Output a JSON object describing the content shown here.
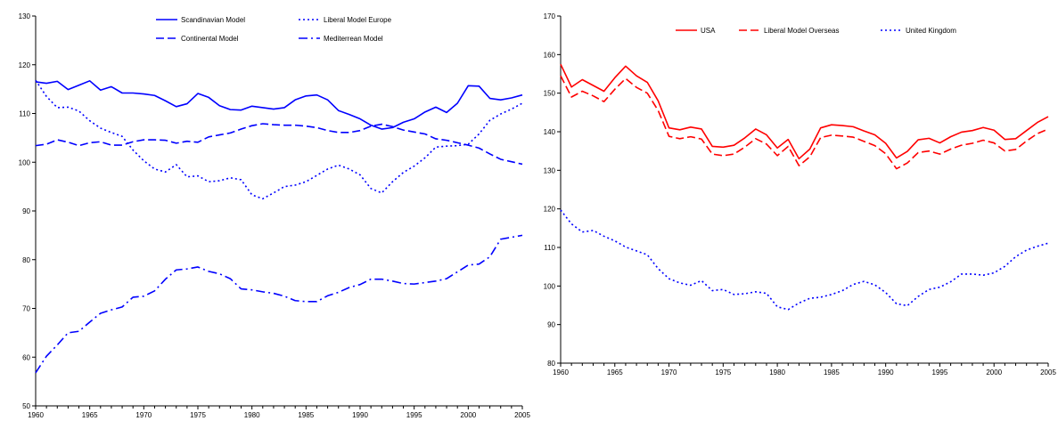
{
  "chart_data": [
    {
      "type": "line",
      "x": [
        1960,
        1961,
        1962,
        1963,
        1964,
        1965,
        1966,
        1967,
        1968,
        1969,
        1970,
        1971,
        1972,
        1973,
        1974,
        1975,
        1976,
        1977,
        1978,
        1979,
        1980,
        1981,
        1982,
        1983,
        1984,
        1985,
        1986,
        1987,
        1988,
        1989,
        1990,
        1991,
        1992,
        1993,
        1994,
        1995,
        1996,
        1997,
        1998,
        1999,
        2000,
        2001,
        2002,
        2003,
        2004,
        2005
      ],
      "xticks": [
        1960,
        1965,
        1970,
        1975,
        1980,
        1985,
        1990,
        1995,
        2000,
        2005
      ],
      "xlim": [
        1960,
        2005
      ],
      "ylim": [
        50,
        130
      ],
      "yticks": [
        50,
        60,
        70,
        80,
        90,
        100,
        110,
        120,
        130
      ],
      "grid": false,
      "legend_position": "top-center",
      "series": [
        {
          "name": "Scandinavian Model",
          "color": "#0000ff",
          "style": "solid",
          "values": [
            116.5,
            116.2,
            116.6,
            114.9,
            115.8,
            116.7,
            114.8,
            115.5,
            114.2,
            114.2,
            114.0,
            113.7,
            112.6,
            111.4,
            112.0,
            114.1,
            113.3,
            111.6,
            110.8,
            110.7,
            111.5,
            111.2,
            110.9,
            111.2,
            112.8,
            113.6,
            113.8,
            112.8,
            110.6,
            109.8,
            108.9,
            107.6,
            106.8,
            107.1,
            108.2,
            108.9,
            110.3,
            111.3,
            110.2,
            112.1,
            115.7,
            115.6,
            113.1,
            112.8,
            113.2,
            113.8
          ]
        },
        {
          "name": "Liberal Model Europe",
          "color": "#0000ff",
          "style": "dotted",
          "values": [
            116.8,
            113.5,
            111.2,
            111.3,
            110.5,
            108.5,
            107.0,
            106.1,
            105.3,
            102.5,
            100.3,
            98.6,
            98.0,
            99.5,
            97.0,
            97.2,
            96.0,
            96.2,
            96.8,
            96.4,
            93.3,
            92.5,
            93.7,
            95.0,
            95.3,
            96.0,
            97.3,
            98.6,
            99.4,
            98.6,
            97.4,
            94.6,
            93.7,
            96.0,
            97.9,
            99.2,
            100.9,
            103.1,
            103.3,
            103.4,
            103.7,
            105.8,
            108.6,
            109.9,
            110.9,
            112.1
          ]
        },
        {
          "name": "Continental Model",
          "color": "#0000ff",
          "style": "dashed",
          "values": [
            103.4,
            103.7,
            104.6,
            104.1,
            103.4,
            104.0,
            104.2,
            103.5,
            103.5,
            104.2,
            104.6,
            104.6,
            104.5,
            103.9,
            104.3,
            104.1,
            105.2,
            105.6,
            106.0,
            106.8,
            107.5,
            107.9,
            107.7,
            107.6,
            107.6,
            107.4,
            107.1,
            106.5,
            106.1,
            106.1,
            106.5,
            107.4,
            107.8,
            107.3,
            106.6,
            106.2,
            105.8,
            104.8,
            104.5,
            104.0,
            103.5,
            102.9,
            101.7,
            100.6,
            100.1,
            99.6
          ]
        },
        {
          "name": "Mediterrean Model",
          "color": "#0000ff",
          "style": "dashdot",
          "values": [
            56.8,
            60.2,
            62.5,
            65.0,
            65.3,
            67.2,
            69.0,
            69.7,
            70.3,
            72.3,
            72.5,
            73.6,
            76.0,
            77.9,
            78.1,
            78.5,
            77.6,
            77.1,
            76.1,
            74.0,
            73.8,
            73.4,
            73.1,
            72.5,
            71.6,
            71.4,
            71.4,
            72.6,
            73.3,
            74.3,
            74.9,
            76.0,
            76.0,
            75.6,
            75.1,
            75.0,
            75.3,
            75.6,
            76.1,
            77.5,
            78.9,
            79.1,
            80.6,
            84.2,
            84.6,
            85.0
          ]
        }
      ]
    },
    {
      "type": "line",
      "x": [
        1960,
        1961,
        1962,
        1963,
        1964,
        1965,
        1966,
        1967,
        1968,
        1969,
        1970,
        1971,
        1972,
        1973,
        1974,
        1975,
        1976,
        1977,
        1978,
        1979,
        1980,
        1981,
        1982,
        1983,
        1984,
        1985,
        1986,
        1987,
        1988,
        1989,
        1990,
        1991,
        1992,
        1993,
        1994,
        1995,
        1996,
        1997,
        1998,
        1999,
        2000,
        2001,
        2002,
        2003,
        2004,
        2005
      ],
      "xticks": [
        1960,
        1965,
        1970,
        1975,
        1980,
        1985,
        1990,
        1995,
        2000,
        2005
      ],
      "xlim": [
        1960,
        2005
      ],
      "ylim": [
        80,
        170
      ],
      "yticks": [
        80,
        90,
        100,
        110,
        120,
        130,
        140,
        150,
        160,
        170
      ],
      "grid": false,
      "legend_position": "top-center",
      "series": [
        {
          "name": "USA",
          "color": "#ff0000",
          "style": "solid",
          "values": [
            157.5,
            151.6,
            153.5,
            152.0,
            150.5,
            154.0,
            157.0,
            154.5,
            152.8,
            148.0,
            141.0,
            140.5,
            141.2,
            140.7,
            136.2,
            136.0,
            136.5,
            138.4,
            140.7,
            139.2,
            135.8,
            138.0,
            133.0,
            135.5,
            141.0,
            141.8,
            141.6,
            141.3,
            140.2,
            139.2,
            137.0,
            133.2,
            134.9,
            137.9,
            138.3,
            137.1,
            138.7,
            139.9,
            140.3,
            141.1,
            140.4,
            138.0,
            138.2,
            140.3,
            142.4,
            143.9
          ]
        },
        {
          "name": "Liberal Model Overseas",
          "color": "#ff0000",
          "style": "dashed",
          "values": [
            154.5,
            149.0,
            150.5,
            149.3,
            147.8,
            151.0,
            153.8,
            151.5,
            150.0,
            145.5,
            138.8,
            138.2,
            138.7,
            138.1,
            134.2,
            133.8,
            134.2,
            136.0,
            138.2,
            136.8,
            133.8,
            136.2,
            131.2,
            133.5,
            138.5,
            139.1,
            138.9,
            138.6,
            137.5,
            136.4,
            134.3,
            130.4,
            131.9,
            134.6,
            135.0,
            134.2,
            135.5,
            136.5,
            137.0,
            137.8,
            137.1,
            135.0,
            135.4,
            137.6,
            139.5,
            140.7
          ]
        },
        {
          "name": "United Kingdom",
          "color": "#0000ff",
          "style": "dotted",
          "values": [
            119.7,
            116.1,
            114.0,
            114.4,
            112.9,
            111.7,
            110.1,
            109.1,
            108.1,
            104.5,
            101.9,
            100.8,
            100.2,
            101.4,
            98.8,
            99.1,
            97.8,
            98.0,
            98.5,
            98.1,
            94.6,
            93.9,
            95.6,
            96.8,
            97.1,
            97.8,
            98.8,
            100.4,
            101.2,
            100.3,
            98.3,
            95.4,
            94.9,
            97.3,
            99.1,
            99.7,
            101.1,
            103.1,
            103.1,
            102.8,
            103.4,
            105.1,
            107.6,
            109.3,
            110.3,
            111.1
          ]
        }
      ]
    }
  ]
}
